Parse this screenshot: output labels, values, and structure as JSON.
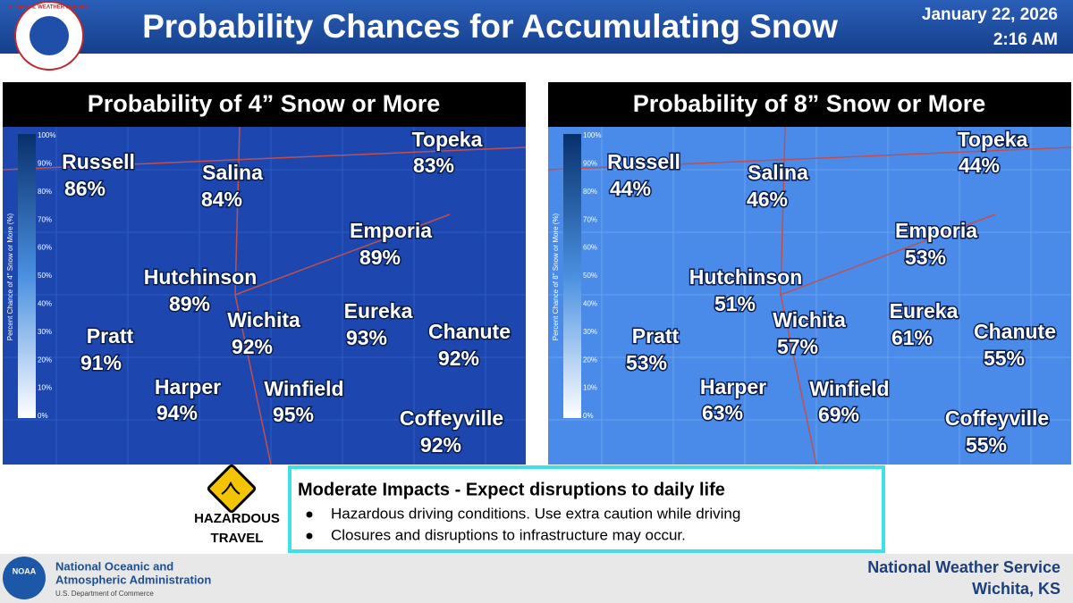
{
  "header": {
    "title": "Probability Chances for Accumulating Snow",
    "date": "January 22, 2026",
    "time": "2:16 AM",
    "logo_text": "NATIONAL WEATHER SERVICE"
  },
  "maps": [
    {
      "title": "Probability of 4” Snow or More",
      "legend_label": "Percent Chance of 4\" Snow or More (%)",
      "legend_ticks": [
        "100%",
        "90%",
        "80%",
        "70%",
        "60%",
        "50%",
        "40%",
        "30%",
        "20%",
        "10%",
        "0%"
      ],
      "cities": [
        {
          "name": "Russell",
          "value": "86%"
        },
        {
          "name": "Salina",
          "value": "84%"
        },
        {
          "name": "Topeka",
          "value": "83%"
        },
        {
          "name": "Emporia",
          "value": "89%"
        },
        {
          "name": "Hutchinson",
          "value": "89%"
        },
        {
          "name": "Wichita",
          "value": "92%"
        },
        {
          "name": "Eureka",
          "value": "93%"
        },
        {
          "name": "Pratt",
          "value": "91%"
        },
        {
          "name": "Chanute",
          "value": "92%"
        },
        {
          "name": "Harper",
          "value": "94%"
        },
        {
          "name": "Winfield",
          "value": "95%"
        },
        {
          "name": "Coffeyville",
          "value": "92%"
        }
      ]
    },
    {
      "title": "Probability of 8” Snow or More",
      "legend_label": "Percent Chance of 8\" Snow or More (%)",
      "legend_ticks": [
        "100%",
        "90%",
        "80%",
        "70%",
        "60%",
        "50%",
        "40%",
        "30%",
        "20%",
        "10%",
        "0%"
      ],
      "cities": [
        {
          "name": "Russell",
          "value": "44%"
        },
        {
          "name": "Salina",
          "value": "46%"
        },
        {
          "name": "Topeka",
          "value": "44%"
        },
        {
          "name": "Emporia",
          "value": "53%"
        },
        {
          "name": "Hutchinson",
          "value": "51%"
        },
        {
          "name": "Wichita",
          "value": "57%"
        },
        {
          "name": "Eureka",
          "value": "61%"
        },
        {
          "name": "Pratt",
          "value": "53%"
        },
        {
          "name": "Chanute",
          "value": "55%"
        },
        {
          "name": "Harper",
          "value": "63%"
        },
        {
          "name": "Winfield",
          "value": "69%"
        },
        {
          "name": "Coffeyville",
          "value": "55%"
        }
      ]
    }
  ],
  "hazard": {
    "line1": "HAZARDOUS",
    "line2": "TRAVEL"
  },
  "impacts": {
    "heading": "Moderate Impacts - Expect disruptions to daily life",
    "bullets": [
      "Hazardous driving conditions. Use extra caution while driving",
      "Closures and disruptions to infrastructure may occur."
    ]
  },
  "footer": {
    "noaa_logo": "NOAA",
    "noaa_line1": "National Oceanic and",
    "noaa_line2": "Atmospheric Administration",
    "noaa_line3": "U.S. Department of Commerce",
    "nws_line1": "National Weather Service",
    "nws_line2": "Wichita, KS"
  }
}
